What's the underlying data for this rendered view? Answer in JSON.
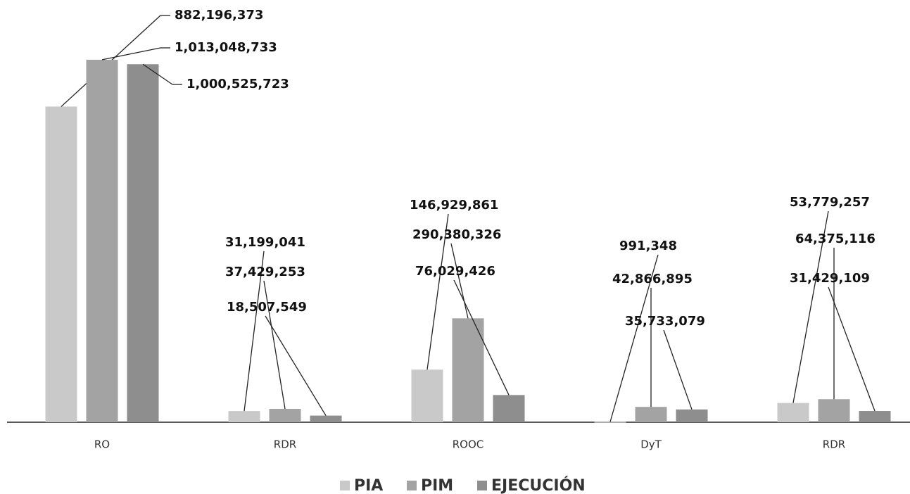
{
  "chart_data": {
    "type": "bar",
    "categories": [
      "RO",
      "RDR",
      "ROOC",
      "DyT",
      "RDR"
    ],
    "series": [
      {
        "name": "PIA",
        "color": "#c9c9c9",
        "values": [
          882196373,
          31199041,
          146929861,
          991348,
          53779257
        ],
        "value_labels": [
          "882,196,373",
          "31,199,041",
          "146,929,861",
          "991,348",
          "53,779,257"
        ]
      },
      {
        "name": "PIM",
        "color": "#a3a3a3",
        "values": [
          1013048733,
          37429253,
          290380326,
          42866895,
          64375116
        ],
        "value_labels": [
          "1,013,048,733",
          "37,429,253",
          "290,380,326",
          "42,866,895",
          "64,375,116"
        ]
      },
      {
        "name": "EJECUCIÓN",
        "color": "#8e8e8e",
        "values": [
          1000525723,
          18507549,
          76029426,
          35733079,
          31429109
        ],
        "value_labels": [
          "1,000,525,723",
          "18,507,549",
          "76,029,426",
          "35,733,079",
          "31,429,109"
        ]
      }
    ],
    "ylim": [
      0,
      1180000000
    ],
    "legend": "bottom"
  }
}
